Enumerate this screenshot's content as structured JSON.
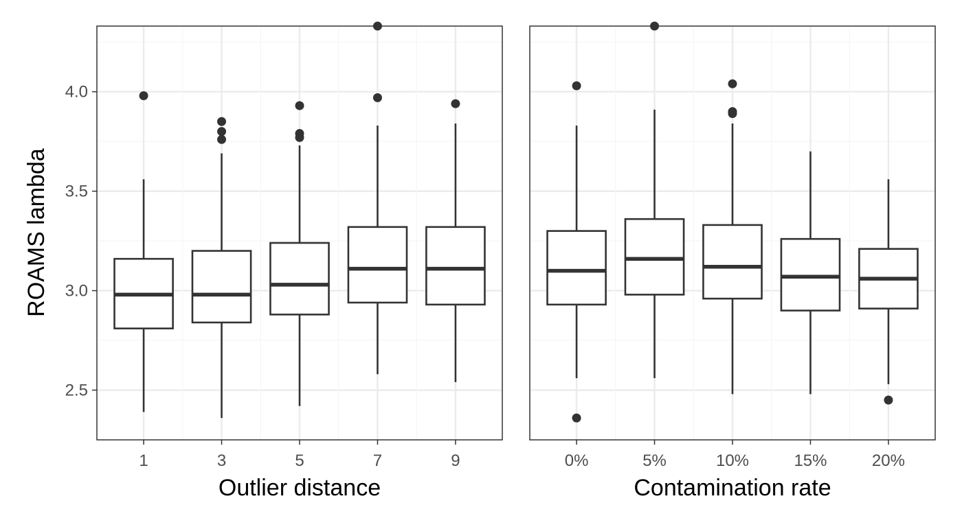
{
  "chart_data": [
    {
      "type": "box",
      "xlabel": "Outlier distance",
      "ylabel": "ROAMS lambda",
      "ylim": [
        2.25,
        4.33
      ],
      "yticks": [
        2.5,
        3.0,
        3.5,
        4.0
      ],
      "ytick_labels": [
        "2.5",
        "3.0",
        "3.5",
        "4.0"
      ],
      "grid": true,
      "categories": [
        "1",
        "3",
        "5",
        "7",
        "9"
      ],
      "boxes": [
        {
          "category": "1",
          "q1": 2.81,
          "median": 2.98,
          "q3": 3.16,
          "whisker_low": 2.39,
          "whisker_high": 3.56,
          "outliers": [
            3.98
          ]
        },
        {
          "category": "3",
          "q1": 2.84,
          "median": 2.98,
          "q3": 3.2,
          "whisker_low": 2.36,
          "whisker_high": 3.69,
          "outliers": [
            3.85,
            3.8,
            3.76
          ]
        },
        {
          "category": "5",
          "q1": 2.88,
          "median": 3.03,
          "q3": 3.24,
          "whisker_low": 2.42,
          "whisker_high": 3.73,
          "outliers": [
            3.93,
            3.79,
            3.77
          ]
        },
        {
          "category": "7",
          "q1": 2.94,
          "median": 3.11,
          "q3": 3.32,
          "whisker_low": 2.58,
          "whisker_high": 3.83,
          "outliers": [
            4.33,
            3.97
          ]
        },
        {
          "category": "9",
          "q1": 2.93,
          "median": 3.11,
          "q3": 3.32,
          "whisker_low": 2.54,
          "whisker_high": 3.84,
          "outliers": [
            3.94
          ]
        }
      ]
    },
    {
      "type": "box",
      "xlabel": "Contamination rate",
      "ylabel": "",
      "ylim": [
        2.25,
        4.33
      ],
      "grid": true,
      "categories": [
        "0%",
        "5%",
        "10%",
        "15%",
        "20%"
      ],
      "boxes": [
        {
          "category": "0%",
          "q1": 2.93,
          "median": 3.1,
          "q3": 3.3,
          "whisker_low": 2.56,
          "whisker_high": 3.83,
          "outliers": [
            4.03,
            2.36
          ]
        },
        {
          "category": "5%",
          "q1": 2.98,
          "median": 3.16,
          "q3": 3.36,
          "whisker_low": 2.56,
          "whisker_high": 3.91,
          "outliers": [
            4.33
          ]
        },
        {
          "category": "10%",
          "q1": 2.96,
          "median": 3.12,
          "q3": 3.33,
          "whisker_low": 2.48,
          "whisker_high": 3.84,
          "outliers": [
            4.04,
            3.9,
            3.89
          ]
        },
        {
          "category": "15%",
          "q1": 2.9,
          "median": 3.07,
          "q3": 3.26,
          "whisker_low": 2.48,
          "whisker_high": 3.7,
          "outliers": []
        },
        {
          "category": "20%",
          "q1": 2.91,
          "median": 3.06,
          "q3": 3.21,
          "whisker_low": 2.53,
          "whisker_high": 3.56,
          "outliers": [
            2.45
          ]
        }
      ]
    }
  ],
  "colors": {
    "box_stroke": "#333333",
    "box_fill": "#ffffff",
    "grid_major": "#ebebeb",
    "grid_minor": "#f5f5f5",
    "panel_border": "#333333"
  }
}
